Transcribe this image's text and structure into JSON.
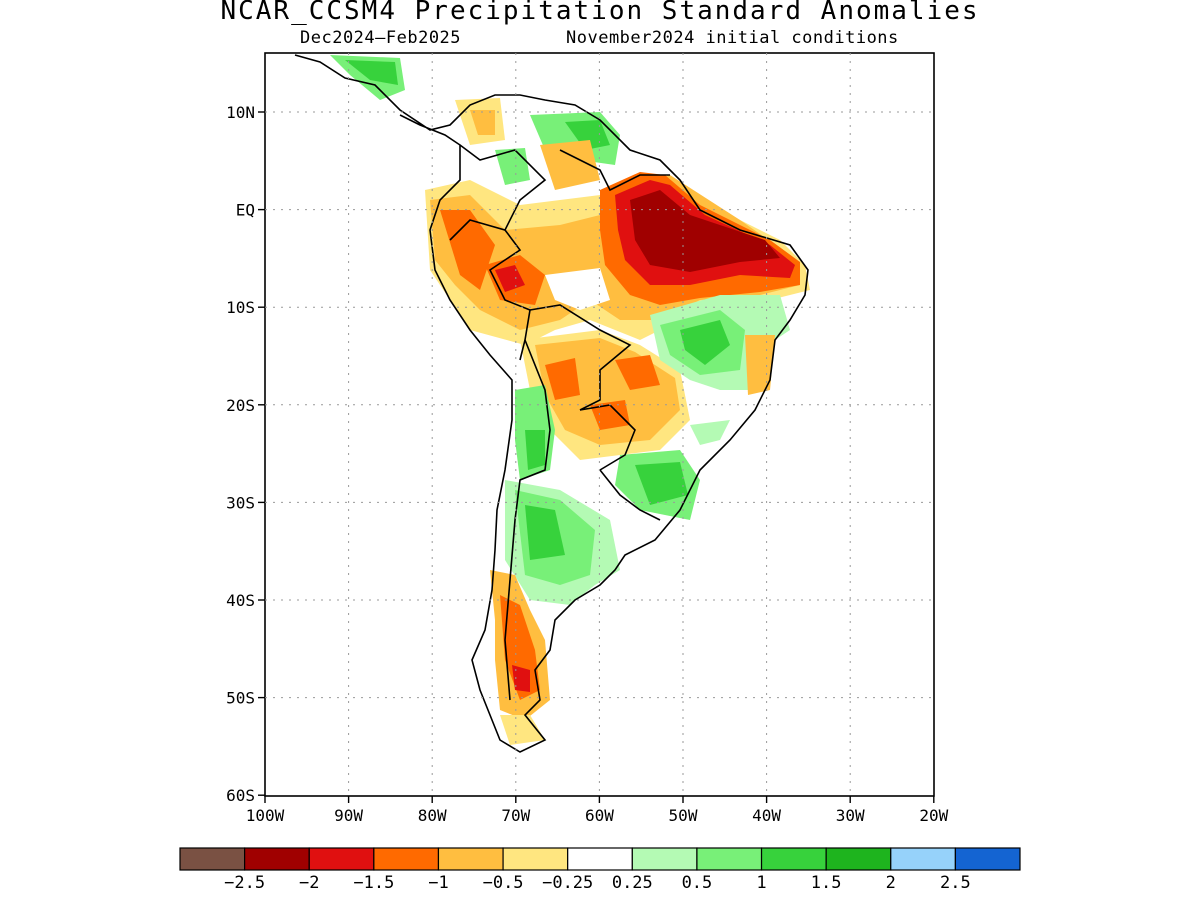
{
  "title": "NCAR_CCSM4 Precipitation Standard Anomalies",
  "subtitle_left": "Dec2024–Feb2025",
  "subtitle_right": "November2024 initial conditions",
  "lat_labels": [
    "10N",
    "EQ",
    "10S",
    "20S",
    "30S",
    "40S",
    "50S",
    "60S"
  ],
  "lon_labels": [
    "100W",
    "90W",
    "80W",
    "70W",
    "60W",
    "50W",
    "40W",
    "30W",
    "20W"
  ],
  "colorbar": {
    "colors": [
      "#7a5143",
      "#a00000",
      "#e01010",
      "#ff6a00",
      "#ffbe40",
      "#ffe680",
      "#ffffff",
      "#b4fab4",
      "#78f078",
      "#37d23c",
      "#1eb41e",
      "#96d2fa",
      "#1464d2"
    ],
    "labels": [
      "−2.5",
      "−2",
      "−1.5",
      "−1",
      "−0.5",
      "−0.25",
      "0.25",
      "0.5",
      "1",
      "1.5",
      "2",
      "2.5"
    ]
  }
}
